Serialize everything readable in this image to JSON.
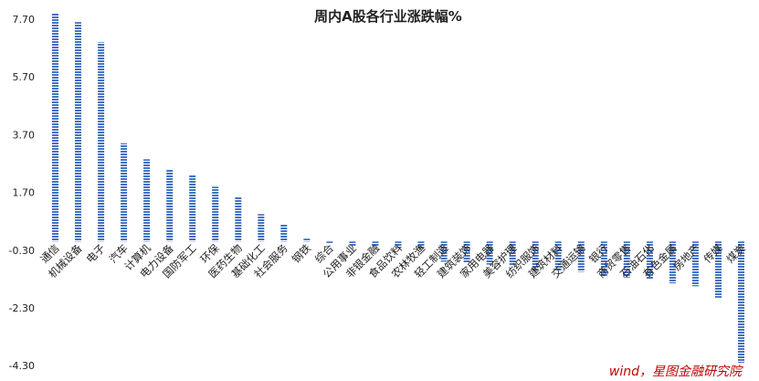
{
  "chart_data": {
    "type": "bar",
    "title": "周内A股各行业涨跌幅%",
    "source": "wind，星图金融研究院",
    "xlabel": "",
    "ylabel": "",
    "yticks": [
      7.7,
      5.7,
      3.7,
      1.7,
      -0.3,
      -2.3,
      -4.3
    ],
    "ytick_labels": [
      "7.70",
      "5.70",
      "3.70",
      "1.70",
      "-0.30",
      "-2.30",
      "-4.30"
    ],
    "ylim": [
      -4.3,
      8.2
    ],
    "grid": false,
    "legend": "none",
    "bar_color": "#4472C4",
    "bar_pattern": "horizontal-stripes",
    "categories": [
      "通信",
      "机械设备",
      "电子",
      "汽车",
      "计算机",
      "电力设备",
      "国防军工",
      "环保",
      "医药生物",
      "基础化工",
      "社会服务",
      "钢铁",
      "综合",
      "公用事业",
      "非银金融",
      "食品饮料",
      "农林牧渔",
      "轻工制造",
      "建筑装饰",
      "家用电器",
      "美容护理",
      "纺织服饰",
      "建筑材料",
      "交通运输",
      "银行",
      "商贸零售",
      "石油石化",
      "有色金属",
      "房地产",
      "传媒",
      "煤炭"
    ],
    "values": [
      7.9,
      7.6,
      6.9,
      3.4,
      2.85,
      2.5,
      2.3,
      1.9,
      1.55,
      0.95,
      0.6,
      0.1,
      -0.06,
      -0.17,
      -0.19,
      -0.22,
      -0.27,
      -0.7,
      -0.75,
      -0.8,
      -0.85,
      -1.0,
      -1.0,
      -1.05,
      -1.2,
      -1.25,
      -1.3,
      -1.45,
      -1.55,
      -1.95,
      -4.2
    ]
  }
}
